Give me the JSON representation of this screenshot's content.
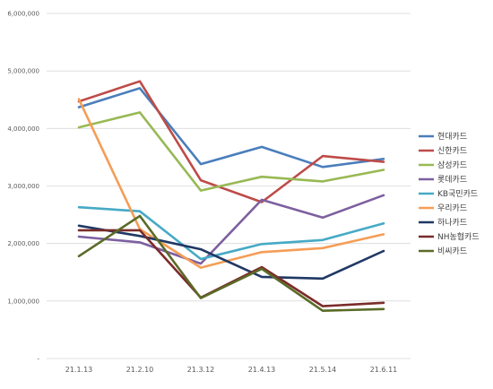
{
  "chart_data": {
    "type": "line",
    "categories": [
      "21.1.13",
      "21.2.10",
      "21.3.12",
      "21.4.13",
      "21.5.14",
      "21.6.11"
    ],
    "ylim": [
      0,
      6000000
    ],
    "yticks": [
      0,
      1000000,
      2000000,
      3000000,
      4000000,
      5000000,
      6000000
    ],
    "ytick_labels": [
      "-",
      "1,000,000",
      "2,000,000",
      "3,000,000",
      "4,000,000",
      "5,000,000",
      "6,000,000"
    ],
    "grid": true,
    "legend_position": "right",
    "series": [
      {
        "name": "현대카드",
        "color": "#4a7ebb",
        "values": [
          4370000,
          4700000,
          3380000,
          3680000,
          3330000,
          3470000
        ]
      },
      {
        "name": "신한카드",
        "color": "#be4b48",
        "values": [
          4470000,
          4820000,
          3100000,
          2720000,
          3520000,
          3420000
        ]
      },
      {
        "name": "삼성카드",
        "color": "#98b954",
        "values": [
          4020000,
          4280000,
          2920000,
          3160000,
          3080000,
          3280000
        ]
      },
      {
        "name": "롯데카드",
        "color": "#7d60a0",
        "values": [
          2120000,
          2020000,
          1650000,
          2760000,
          2450000,
          2840000
        ]
      },
      {
        "name": "KB국민카드",
        "color": "#46aac5",
        "values": [
          2630000,
          2560000,
          1730000,
          1990000,
          2060000,
          2350000
        ]
      },
      {
        "name": "우리카드",
        "color": "#f59d56",
        "values": [
          4510000,
          2250000,
          1580000,
          1850000,
          1920000,
          2160000
        ]
      },
      {
        "name": "하나카드",
        "color": "#203864",
        "values": [
          2310000,
          2130000,
          1900000,
          1420000,
          1390000,
          1870000
        ]
      },
      {
        "name": "NH농협카드",
        "color": "#7b2c2a",
        "values": [
          2230000,
          2230000,
          1060000,
          1590000,
          910000,
          970000
        ]
      },
      {
        "name": "비씨카드",
        "color": "#5a6b27",
        "values": [
          1780000,
          2480000,
          1050000,
          1560000,
          830000,
          860000
        ]
      }
    ]
  }
}
